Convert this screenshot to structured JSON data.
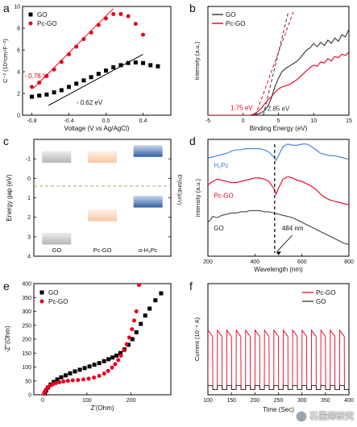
{
  "chart_data": [
    {
      "panel": "a",
      "type": "scatter",
      "xlabel": "Voltage (V vs Ag/AgCl)",
      "ylabel": "C⁻² (10⁹cm⁴F⁻²)",
      "xlim": [
        -0.9,
        0.7
      ],
      "ylim": [
        0,
        10
      ],
      "xticks": [
        -0.8,
        -0.4,
        0.0,
        0.4
      ],
      "xtick_labels": [
        "-0.8",
        "-0.4",
        "0.0",
        "0.4"
      ],
      "yticks": [
        0,
        2,
        4,
        6,
        8,
        10
      ],
      "ytick_labels": [
        "0",
        "2",
        "4",
        "6",
        "8",
        "10"
      ],
      "legend_position": "top-left",
      "annotations": [
        "- 0.78 V",
        "- 0.62 eV"
      ],
      "series": [
        {
          "name": "GO",
          "color": "#000000",
          "marker": "square",
          "x": [
            -0.8,
            -0.72,
            -0.64,
            -0.56,
            -0.48,
            -0.4,
            -0.32,
            -0.24,
            -0.16,
            -0.08,
            0.0,
            0.08,
            0.16,
            0.24,
            0.32,
            0.4,
            0.48,
            0.56
          ],
          "y": [
            1.7,
            1.8,
            1.9,
            2.1,
            2.3,
            2.6,
            2.9,
            3.2,
            3.5,
            3.8,
            4.1,
            4.4,
            4.6,
            4.8,
            4.85,
            4.8,
            4.6,
            4.5
          ],
          "fit": [
            [
              -0.62,
              0.9
            ],
            [
              0.4,
              5.6
            ]
          ]
        },
        {
          "name": "Pc-GO",
          "color": "#e8001c",
          "marker": "circle",
          "x": [
            -0.8,
            -0.72,
            -0.64,
            -0.56,
            -0.48,
            -0.4,
            -0.32,
            -0.24,
            -0.16,
            -0.08,
            0.0,
            0.08,
            0.16,
            0.24,
            0.32,
            0.4
          ],
          "y": [
            2.6,
            3.0,
            3.6,
            4.2,
            4.9,
            5.6,
            6.3,
            7.0,
            7.6,
            8.3,
            8.9,
            9.3,
            9.3,
            9.1,
            8.4,
            7.4
          ],
          "fit": [
            [
              -0.78,
              2.5
            ],
            [
              0.08,
              9.8
            ]
          ]
        }
      ]
    },
    {
      "panel": "b",
      "type": "line",
      "xlabel": "Binding Energy (eV)",
      "ylabel": "Intensity (a.u.)",
      "xlim": [
        -5,
        15
      ],
      "ylim": [
        0,
        1
      ],
      "xticks": [
        -5,
        0,
        5,
        10,
        15
      ],
      "xtick_labels": [
        "-5",
        "0",
        "5",
        "10",
        "15"
      ],
      "legend_position": "top-left",
      "annotations": [
        "1.75 eV",
        "2.85 eV"
      ],
      "series": [
        {
          "name": "GO",
          "color": "#333333",
          "x": [
            -5,
            -1,
            0,
            1,
            2,
            2.5,
            3,
            3.5,
            4,
            4.5,
            5,
            5.5,
            6,
            6.5,
            7,
            7.5,
            8,
            8.5,
            9,
            9.5,
            10,
            10.5,
            11,
            11.5,
            12,
            12.5,
            13,
            13.5,
            14,
            14.5,
            15
          ],
          "y": [
            0,
            0,
            0,
            0,
            0.01,
            0.02,
            0.04,
            0.08,
            0.16,
            0.26,
            0.34,
            0.4,
            0.43,
            0.45,
            0.47,
            0.49,
            0.52,
            0.56,
            0.6,
            0.62,
            0.66,
            0.63,
            0.67,
            0.64,
            0.69,
            0.66,
            0.71,
            0.68,
            0.74,
            0.72,
            0.79
          ],
          "fit": [
            [
              2.85,
              0
            ],
            [
              6.4,
              0.95
            ]
          ]
        },
        {
          "name": "Pc-GO",
          "color": "#e8001c",
          "x": [
            -5,
            -1,
            0,
            1,
            1.5,
            2,
            2.5,
            3,
            3.5,
            4,
            4.5,
            5,
            5.5,
            6,
            6.5,
            7,
            7.5,
            8,
            8.5,
            9,
            9.5,
            10,
            10.5,
            11,
            11.5,
            12,
            12.5,
            13,
            13.5,
            14,
            14.5,
            15
          ],
          "y": [
            0,
            0,
            0,
            0,
            0.01,
            0.03,
            0.06,
            0.1,
            0.14,
            0.17,
            0.21,
            0.24,
            0.26,
            0.27,
            0.28,
            0.3,
            0.32,
            0.35,
            0.38,
            0.41,
            0.44,
            0.46,
            0.45,
            0.49,
            0.48,
            0.52,
            0.5,
            0.54,
            0.53,
            0.56,
            0.55,
            0.58
          ],
          "fit": [
            [
              1.75,
              0
            ],
            [
              7.1,
              0.95
            ]
          ]
        }
      ]
    },
    {
      "panel": "c",
      "type": "bar",
      "ylabel": "Energy gap (eV)",
      "ylabel_right": "Eᴰ(NHE)(eV)",
      "ylim": [
        -2,
        4
      ],
      "yticks": [
        -1,
        0,
        1,
        2,
        3,
        4
      ],
      "ytick_labels": [
        "-1",
        "0",
        "1",
        "2",
        "3",
        "4"
      ],
      "categories": [
        "GO",
        "Pc-GO",
        "α-H₂Pc"
      ],
      "dashed_level": 0.4,
      "levels": [
        {
          "category": "GO",
          "top": -1.4,
          "bottom": -0.8,
          "color": "#b5b5b5"
        },
        {
          "category": "GO",
          "top": 2.8,
          "bottom": 3.4,
          "color": "#b5b5b5"
        },
        {
          "category": "Pc-GO",
          "top": -1.4,
          "bottom": -0.8,
          "color": "#f9c7a4"
        },
        {
          "category": "Pc-GO",
          "top": 1.6,
          "bottom": 2.2,
          "color": "#f9c7a4"
        },
        {
          "category": "α-H₂Pc",
          "top": -1.7,
          "bottom": -1.1,
          "color": "#2f5fa8"
        },
        {
          "category": "α-H₂Pc",
          "top": 0.9,
          "bottom": 1.5,
          "color": "#2f5fa8"
        }
      ]
    },
    {
      "panel": "d",
      "type": "line",
      "xlabel": "Wavelength (nm)",
      "ylabel": "intensity (a.u.)",
      "xlim": [
        200,
        800
      ],
      "ylim": [
        0,
        1
      ],
      "xticks": [
        200,
        400,
        600,
        800
      ],
      "xtick_labels": [
        "200",
        "400",
        "600",
        "800"
      ],
      "marker_line_x": 484,
      "annotations": [
        "484 nm"
      ],
      "series": [
        {
          "name": "H₂Pc",
          "color": "#3a7fd5",
          "x": [
            200,
            220,
            240,
            260,
            280,
            300,
            320,
            340,
            360,
            380,
            400,
            420,
            440,
            460,
            480,
            490,
            500,
            520,
            540,
            560,
            580,
            600,
            620,
            640,
            660,
            680,
            700,
            720,
            740,
            760,
            780,
            800
          ],
          "y": [
            0.84,
            0.85,
            0.86,
            0.87,
            0.88,
            0.9,
            0.91,
            0.91,
            0.92,
            0.92,
            0.92,
            0.92,
            0.91,
            0.89,
            0.85,
            0.82,
            0.86,
            0.94,
            0.96,
            0.95,
            0.95,
            0.96,
            0.96,
            0.94,
            0.91,
            0.88,
            0.87,
            0.86,
            0.86,
            0.85,
            0.84,
            0.83
          ]
        },
        {
          "name": "Pc-GO",
          "color": "#e8001c",
          "x": [
            200,
            220,
            240,
            260,
            280,
            300,
            320,
            340,
            360,
            380,
            400,
            420,
            440,
            460,
            480,
            490,
            500,
            520,
            540,
            560,
            580,
            600,
            620,
            640,
            660,
            680,
            700,
            720,
            740,
            760,
            780,
            800
          ],
          "y": [
            0.61,
            0.64,
            0.66,
            0.65,
            0.64,
            0.63,
            0.63,
            0.64,
            0.65,
            0.66,
            0.67,
            0.67,
            0.66,
            0.64,
            0.58,
            0.53,
            0.58,
            0.66,
            0.68,
            0.67,
            0.65,
            0.64,
            0.62,
            0.6,
            0.57,
            0.53,
            0.5,
            0.48,
            0.47,
            0.46,
            0.45,
            0.44
          ]
        },
        {
          "name": "GO",
          "color": "#444444",
          "x": [
            200,
            210,
            220,
            240,
            260,
            280,
            300,
            320,
            340,
            360,
            380,
            400,
            420,
            440,
            460,
            480,
            500,
            520,
            540,
            560,
            580,
            600,
            620,
            640,
            660,
            680,
            700,
            720,
            740,
            760,
            780,
            800
          ],
          "y": [
            0.29,
            0.31,
            0.34,
            0.33,
            0.35,
            0.36,
            0.37,
            0.37,
            0.38,
            0.38,
            0.39,
            0.39,
            0.39,
            0.38,
            0.38,
            0.37,
            0.36,
            0.35,
            0.34,
            0.33,
            0.31,
            0.29,
            0.27,
            0.25,
            0.23,
            0.21,
            0.19,
            0.17,
            0.15,
            0.13,
            0.11,
            0.1
          ]
        }
      ]
    },
    {
      "panel": "e",
      "type": "scatter",
      "xlabel": "Z'(Ohm)",
      "ylabel": "-Z''(Ohm)",
      "xlim": [
        -20,
        290
      ],
      "ylim": [
        0,
        400
      ],
      "xticks": [
        0,
        100,
        200
      ],
      "xtick_labels": [
        "0",
        "100",
        "200"
      ],
      "yticks": [
        0,
        50,
        100,
        150,
        200,
        250,
        300,
        350,
        400
      ],
      "ytick_labels": [
        "0",
        "50",
        "100",
        "150",
        "200",
        "250",
        "300",
        "350",
        "400"
      ],
      "legend_position": "top-left",
      "series": [
        {
          "name": "GO",
          "color": "#000000",
          "marker": "square",
          "x": [
            5,
            8,
            12,
            18,
            25,
            33,
            42,
            52,
            62,
            73,
            84,
            95,
            106,
            117,
            128,
            139,
            149,
            158,
            167,
            176,
            185,
            194,
            203,
            212,
            222,
            232,
            242,
            255,
            268
          ],
          "y": [
            5,
            15,
            26,
            37,
            46,
            55,
            63,
            70,
            77,
            84,
            90,
            96,
            102,
            108,
            114,
            121,
            128,
            134,
            141,
            150,
            163,
            180,
            200,
            225,
            255,
            285,
            310,
            340,
            365
          ]
        },
        {
          "name": "Pc-GO",
          "color": "#e8001c",
          "marker": "circle",
          "x": [
            3,
            5,
            8,
            12,
            17,
            23,
            30,
            38,
            47,
            57,
            68,
            80,
            92,
            104,
            116,
            128,
            139,
            148,
            157,
            164,
            171,
            177,
            184,
            190,
            196,
            202,
            207,
            212,
            218
          ],
          "y": [
            4,
            12,
            20,
            27,
            33,
            38,
            42,
            45,
            48,
            50,
            52,
            53,
            55,
            58,
            62,
            68,
            76,
            86,
            98,
            110,
            125,
            141,
            160,
            182,
            206,
            236,
            267,
            300,
            395
          ]
        }
      ]
    },
    {
      "panel": "f",
      "type": "line",
      "xlabel": "Time (Sec)",
      "ylabel": "Current (10⁻⁸ A)",
      "xlim": [
        100,
        400
      ],
      "ylim": [
        -0.05,
        1.0
      ],
      "xticks": [
        100,
        150,
        200,
        250,
        300,
        350,
        400
      ],
      "xtick_labels": [
        "100",
        "150",
        "200",
        "250",
        "300",
        "350",
        "400"
      ],
      "legend_position": "top-right",
      "series": [
        {
          "name": "Pc-GO",
          "color": "#e8001c",
          "pulse": {
            "start": 100,
            "period": 20,
            "on_duration": 10,
            "on": 0.56,
            "on_end": 0.5,
            "off": 0.0
          }
        },
        {
          "name": "GO",
          "color": "#222222",
          "pulse": {
            "start": 100,
            "period": 20,
            "on_duration": 10,
            "on": 0.04,
            "on_end": 0.035,
            "off": 0.0
          }
        }
      ]
    }
  ],
  "panel_labels": [
    "a",
    "b",
    "c",
    "d",
    "e",
    "f"
  ],
  "watermark": "石墨烯研究"
}
